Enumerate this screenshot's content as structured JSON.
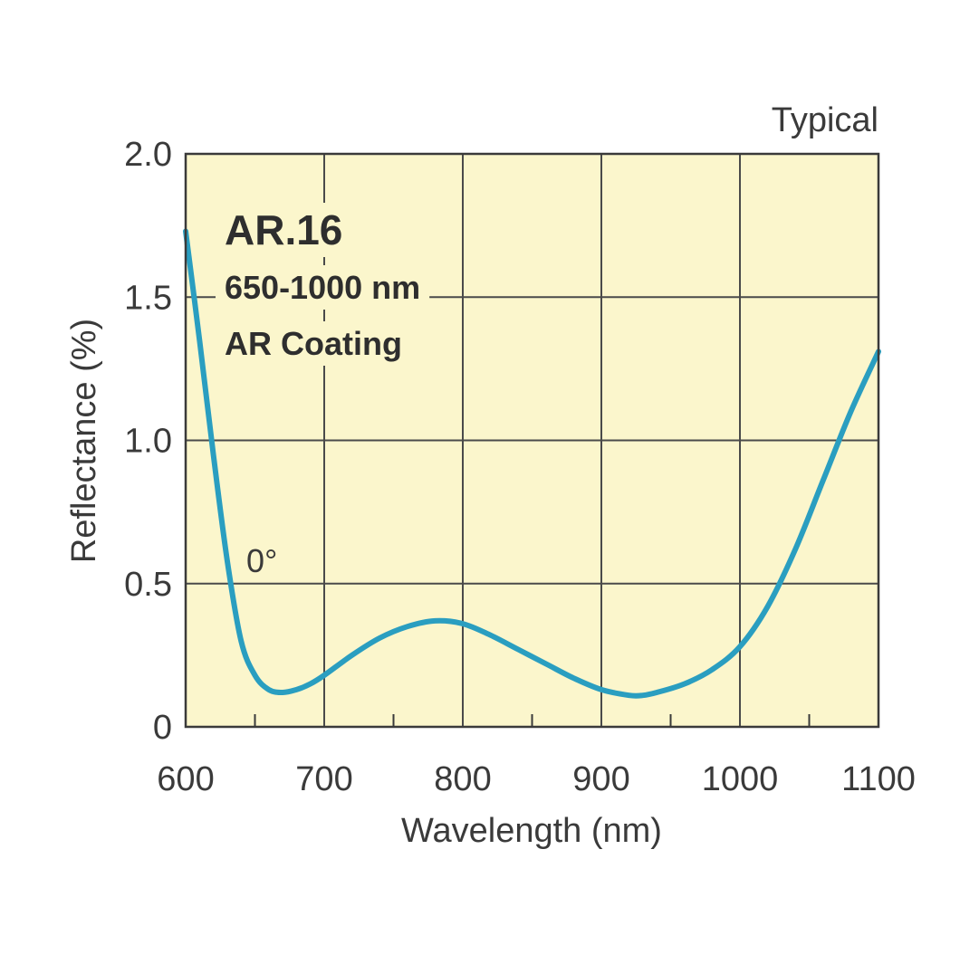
{
  "chart_data": {
    "type": "line",
    "badge": "Typical",
    "xlabel": "Wavelength (nm)",
    "ylabel": "Reflectance (%)",
    "xlim": [
      600,
      1100
    ],
    "ylim": [
      0,
      2.0
    ],
    "x_ticks": [
      600,
      700,
      800,
      900,
      1000,
      1100
    ],
    "x_tick_labels": [
      "600",
      "700",
      "800",
      "900",
      "1000",
      "1100"
    ],
    "y_ticks": [
      0,
      0.5,
      1.0,
      1.5,
      2.0
    ],
    "y_tick_labels": [
      "0",
      "0.5",
      "1.0",
      "1.5",
      "2.0"
    ],
    "grid": true,
    "plot_background": "#fbf6cc",
    "line_color": "#2a9ec0",
    "annotations": {
      "product": "AR.16",
      "range": "650-1000 nm",
      "coating": "AR Coating",
      "angle": "0°"
    },
    "series": [
      {
        "name": "0°",
        "x": [
          600,
          610,
          620,
          630,
          640,
          650,
          660,
          670,
          680,
          690,
          700,
          720,
          740,
          760,
          780,
          800,
          820,
          840,
          860,
          880,
          900,
          920,
          930,
          940,
          960,
          980,
          1000,
          1020,
          1040,
          1060,
          1080,
          1100
        ],
        "y": [
          1.73,
          1.35,
          0.95,
          0.58,
          0.3,
          0.18,
          0.13,
          0.12,
          0.13,
          0.15,
          0.18,
          0.25,
          0.31,
          0.35,
          0.37,
          0.36,
          0.32,
          0.27,
          0.22,
          0.17,
          0.13,
          0.11,
          0.11,
          0.12,
          0.15,
          0.2,
          0.28,
          0.42,
          0.62,
          0.86,
          1.1,
          1.31
        ]
      }
    ]
  }
}
